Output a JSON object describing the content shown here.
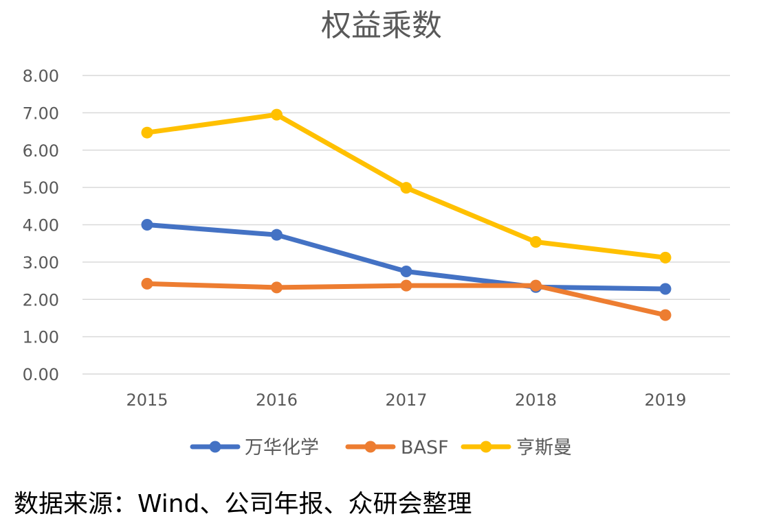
{
  "chart_data": {
    "type": "line",
    "title": "权益乘数",
    "categories": [
      "2015",
      "2016",
      "2017",
      "2018",
      "2019"
    ],
    "ylim": [
      0,
      8
    ],
    "yticks": [
      "0.00",
      "1.00",
      "2.00",
      "3.00",
      "4.00",
      "5.00",
      "6.00",
      "7.00",
      "8.00"
    ],
    "grid": true,
    "legend_position": "bottom",
    "series": [
      {
        "name": "万华化学",
        "color": "#4472C4",
        "values": [
          4.0,
          3.73,
          2.75,
          2.33,
          2.28
        ]
      },
      {
        "name": "BASF",
        "color": "#ED7D31",
        "values": [
          2.42,
          2.32,
          2.37,
          2.37,
          1.58
        ]
      },
      {
        "name": "亨斯曼",
        "color": "#FFC000",
        "values": [
          6.47,
          6.95,
          4.99,
          3.54,
          3.12
        ]
      }
    ]
  },
  "source_note": "数据来源：Wind、公司年报、众研会整理"
}
